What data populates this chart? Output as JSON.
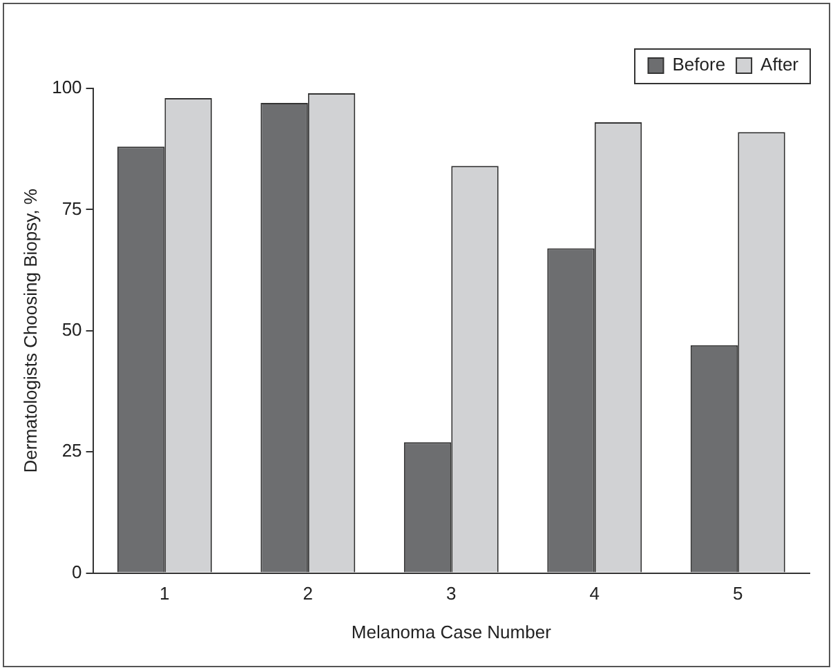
{
  "chart_data": {
    "type": "bar",
    "xlabel": "Melanoma Case Number",
    "ylabel": "Dermatologists Choosing Biopsy, %",
    "categories": [
      "1",
      "2",
      "3",
      "4",
      "5"
    ],
    "series": [
      {
        "name": "Before",
        "color": "#6d6e70",
        "values": [
          88,
          97,
          27,
          67,
          47
        ]
      },
      {
        "name": "After",
        "color": "#d1d2d4",
        "values": [
          98,
          99,
          84,
          93,
          91
        ]
      }
    ],
    "ylim": [
      0,
      100
    ],
    "yticks": [
      0,
      25,
      50,
      75,
      100
    ],
    "grid": false,
    "legend": "top right"
  }
}
